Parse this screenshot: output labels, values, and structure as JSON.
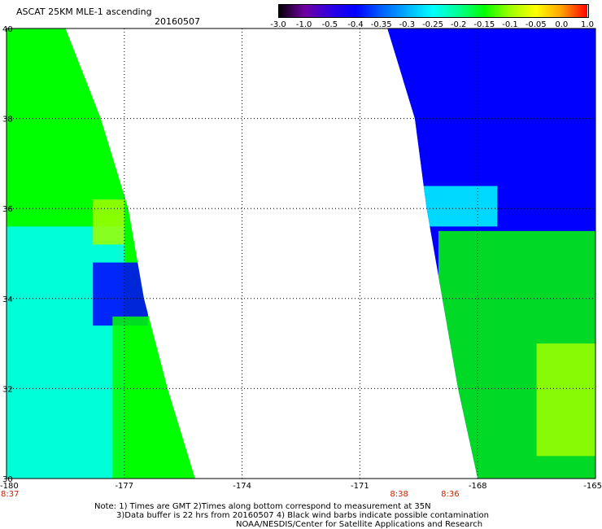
{
  "title": {
    "line1": "ASCAT 25KM MLE-1 ascending",
    "date": "20160507"
  },
  "colorbar": {
    "tick_labels": [
      "-3.0",
      "-1.0",
      "-0.5",
      "-0.4",
      "-0.35",
      "-0.3",
      "-0.25",
      "-0.2",
      "-0.15",
      "-0.1",
      "-0.05",
      "0.0",
      "1.0"
    ],
    "colors": [
      "#000000",
      "#7000a0",
      "#3000e0",
      "#0000ff",
      "#0060ff",
      "#00b0ff",
      "#00ffff",
      "#00ff90",
      "#00ff00",
      "#a0ff00",
      "#ffff00",
      "#ffa000",
      "#ff0000"
    ]
  },
  "footer": {
    "line1": "Note: 1) Times are GMT 2)Times along bottom correspond to measurement at 35N",
    "line2": "3)Data buffer is 22 hrs from 20160507 4) Black wind barbs indicate possible contamination",
    "line3": "NOAA/NESDIS/Center for Satellite Applications and Research"
  },
  "chart_data": {
    "type": "heatmap",
    "title": "ASCAT 25KM MLE-1 ascending",
    "date": "20160507",
    "xlabel": "",
    "ylabel": "",
    "x_ticks": [
      "-180",
      "-177",
      "-174",
      "-171",
      "-168",
      "-165"
    ],
    "x_tick_values": [
      -180,
      -177,
      -174,
      -171,
      -168,
      -165
    ],
    "y_ticks": [
      "40",
      "38",
      "36",
      "34",
      "32",
      "30"
    ],
    "y_tick_values": [
      40,
      38,
      36,
      34,
      32,
      30
    ],
    "xlim": [
      -180,
      -165
    ],
    "ylim": [
      30,
      40
    ],
    "grid": true,
    "time_labels": [
      {
        "x": -180,
        "label": "8:37"
      },
      {
        "x": -170,
        "label": "8:38"
      },
      {
        "x": -168.7,
        "label": "8:36"
      }
    ],
    "swaths": [
      {
        "name": "",
        "edges": [
          [
            40,
            -180,
            -178.5
          ],
          [
            38,
            -180,
            -177.6
          ],
          [
            36,
            -180,
            -176.9
          ],
          [
            34,
            -180,
            -176.5
          ],
          [
            32,
            -180,
            -175.9
          ],
          [
            30,
            -180,
            -175.2
          ]
        ],
        "regions": [
          {
            "level": "-0.15",
            "lat": [
              35.6,
              40
            ],
            "lon": [
              -180,
              -177.8
            ]
          },
          {
            "level": "-0.25",
            "lat": [
              30,
              35.6
            ],
            "lon": [
              -180,
              -177
            ]
          },
          {
            "level": "-0.4",
            "lat": [
              33.4,
              34.8
            ],
            "lon": [
              -177.8,
              -176.4
            ]
          },
          {
            "level": "-0.1",
            "lat": [
              35.2,
              36.2
            ],
            "lon": [
              -177.8,
              -177
            ]
          },
          {
            "level": "-0.15",
            "lat": [
              30,
              33.6
            ],
            "lon": [
              -177.3,
              -175.2
            ]
          }
        ]
      },
      {
        "name": "",
        "edges": [
          [
            40,
            -170.3,
            -165
          ],
          [
            38,
            -169.6,
            -165
          ],
          [
            36,
            -169.3,
            -165
          ],
          [
            34,
            -168.9,
            -165
          ],
          [
            32,
            -168.5,
            -165
          ],
          [
            30,
            -168.0,
            -165
          ]
        ],
        "regions": [
          {
            "level": "-0.4",
            "lat": [
              36.3,
              40
            ],
            "lon": [
              -169.9,
              -166.2
            ]
          },
          {
            "level": "-0.4",
            "lat": [
              38.3,
              40
            ],
            "lon": [
              -166.2,
              -165
            ]
          },
          {
            "level": "-0.25",
            "lat": [
              35.6,
              36.5
            ],
            "lon": [
              -169.5,
              -167.5
            ]
          },
          {
            "level": "-0.15",
            "lat": [
              30,
              35.5
            ],
            "lon": [
              -169,
              -165
            ]
          },
          {
            "level": "-0.1",
            "lat": [
              30.5,
              33
            ],
            "lon": [
              -166.5,
              -165
            ]
          }
        ]
      }
    ]
  }
}
